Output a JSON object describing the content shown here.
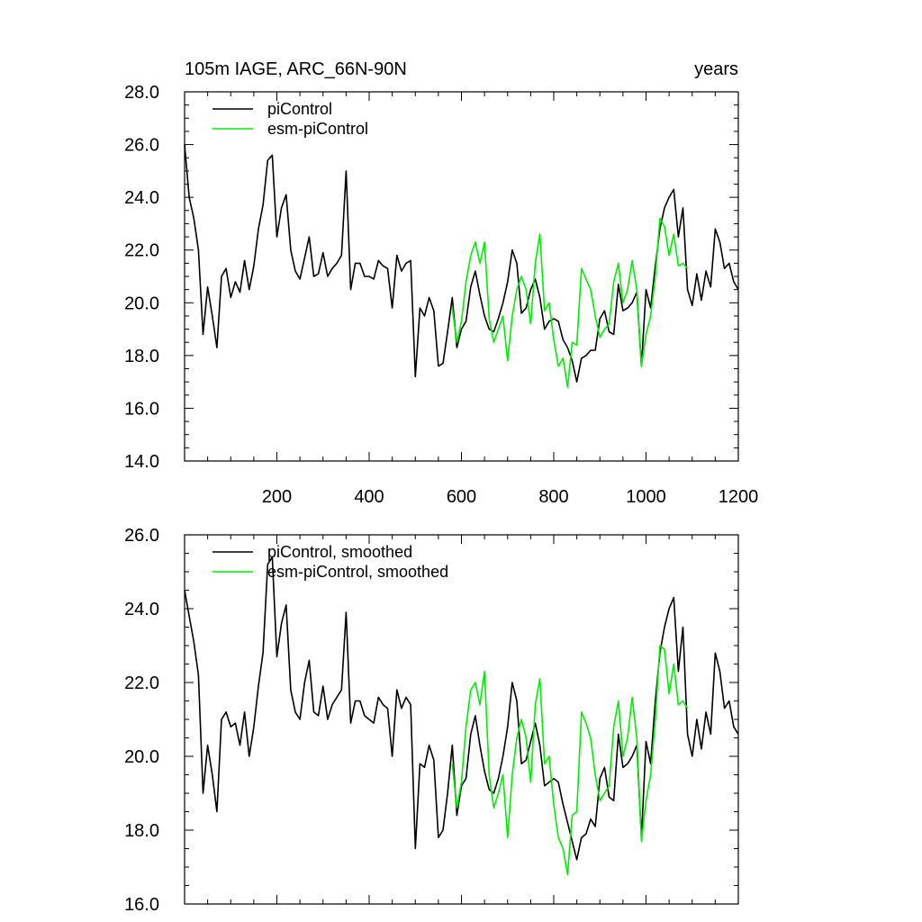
{
  "colors": {
    "piControl": "#000000",
    "esm_piControl": "#00ee00",
    "axis": "#000000"
  },
  "chart_data": [
    {
      "type": "line",
      "title_left": "105m IAGE, ARC_66N-90N",
      "title_right": "years",
      "xlim": [
        0,
        1200
      ],
      "ylim": [
        14,
        28
      ],
      "xticks": [
        200,
        400,
        600,
        800,
        1000,
        1200
      ],
      "xtick_labels": [
        "200",
        "400",
        "600",
        "800",
        "1000",
        "1200"
      ],
      "yticks": [
        14,
        16,
        18,
        20,
        22,
        24,
        26,
        28
      ],
      "ytick_labels": [
        "14.0",
        "16.0",
        "18.0",
        "20.0",
        "22.0",
        "24.0",
        "26.0",
        "28.0"
      ],
      "legend": [
        "piControl",
        "esm-piControl"
      ],
      "series": [
        {
          "name": "piControl",
          "x": [
            0,
            10,
            20,
            30,
            40,
            50,
            60,
            70,
            80,
            90,
            100,
            110,
            120,
            130,
            140,
            150,
            160,
            170,
            180,
            190,
            200,
            210,
            220,
            230,
            240,
            250,
            260,
            270,
            280,
            290,
            300,
            310,
            320,
            330,
            340,
            350,
            360,
            370,
            380,
            390,
            400,
            410,
            420,
            430,
            440,
            450,
            460,
            470,
            480,
            490,
            500,
            510,
            520,
            530,
            540,
            550,
            560,
            570,
            580,
            590,
            600,
            610,
            620,
            630,
            640,
            650,
            660,
            670,
            680,
            690,
            700,
            710,
            720,
            730,
            740,
            750,
            760,
            770,
            780,
            790,
            800,
            810,
            820,
            830,
            840,
            850,
            860,
            870,
            880,
            890,
            900,
            910,
            920,
            930,
            940,
            950,
            960,
            970,
            980,
            990,
            1000,
            1010,
            1020,
            1030,
            1040,
            1050,
            1060,
            1070,
            1080,
            1090,
            1100,
            1110,
            1120,
            1130,
            1140,
            1150,
            1160,
            1170,
            1180,
            1190,
            1200
          ],
          "values": [
            26.0,
            24.0,
            23.2,
            22.0,
            18.8,
            20.6,
            19.5,
            18.3,
            21.0,
            21.3,
            20.2,
            20.8,
            20.4,
            21.6,
            20.5,
            21.4,
            22.8,
            23.7,
            25.4,
            25.6,
            22.5,
            23.6,
            24.1,
            22.0,
            21.2,
            20.9,
            21.7,
            22.5,
            21.0,
            21.1,
            21.9,
            21.0,
            21.3,
            21.5,
            21.8,
            25.0,
            20.5,
            21.5,
            21.5,
            21.0,
            21.0,
            20.9,
            21.6,
            21.4,
            21.3,
            19.8,
            21.8,
            21.2,
            21.5,
            21.6,
            17.2,
            19.8,
            19.5,
            20.2,
            19.7,
            17.6,
            17.7,
            18.9,
            20.2,
            18.3,
            19.0,
            19.3,
            20.6,
            21.2,
            20.3,
            19.5,
            19.0,
            18.9,
            19.4,
            20.0,
            20.8,
            22.0,
            21.5,
            19.6,
            19.8,
            20.5,
            20.9,
            20.2,
            19.0,
            19.3,
            19.4,
            19.3,
            18.6,
            18.3,
            17.8,
            17.0,
            17.9,
            18.0,
            18.2,
            18.2,
            19.4,
            19.7,
            18.9,
            18.8,
            20.7,
            19.7,
            19.8,
            20.0,
            20.4,
            17.6,
            20.5,
            19.8,
            21.4,
            22.8,
            23.6,
            24.0,
            24.3,
            22.5,
            23.6,
            20.5,
            19.9,
            21.1,
            20.1,
            21.2,
            20.6,
            22.8,
            22.3,
            21.3,
            21.5,
            20.8,
            20.5
          ]
        },
        {
          "name": "esm-piControl",
          "x": [
            580,
            590,
            600,
            610,
            620,
            630,
            640,
            650,
            660,
            670,
            680,
            690,
            700,
            710,
            720,
            730,
            740,
            750,
            760,
            770,
            780,
            790,
            800,
            810,
            820,
            830,
            840,
            850,
            860,
            870,
            880,
            890,
            900,
            910,
            920,
            930,
            940,
            950,
            960,
            970,
            980,
            990,
            1000,
            1010,
            1020,
            1030,
            1040,
            1050,
            1060,
            1070,
            1080,
            1090
          ],
          "values": [
            19.8,
            18.5,
            19.3,
            20.8,
            21.8,
            22.3,
            21.5,
            22.3,
            19.4,
            18.5,
            19.0,
            19.5,
            17.8,
            19.5,
            20.5,
            21.0,
            20.5,
            19.2,
            21.5,
            22.6,
            19.7,
            20.0,
            18.6,
            17.6,
            17.9,
            16.8,
            18.5,
            18.4,
            21.3,
            20.9,
            20.5,
            19.5,
            18.7,
            19.0,
            19.2,
            20.8,
            21.5,
            20.0,
            20.5,
            21.6,
            20.5,
            17.6,
            18.8,
            19.5,
            21.0,
            23.2,
            22.9,
            21.8,
            22.6,
            21.4,
            21.5,
            21.3
          ]
        }
      ]
    },
    {
      "type": "line",
      "xlim": [
        0,
        1200
      ],
      "ylim": [
        16,
        26
      ],
      "yticks": [
        16,
        18,
        20,
        22,
        24,
        26
      ],
      "ytick_labels": [
        "16.0",
        "18.0",
        "20.0",
        "22.0",
        "24.0",
        "26.0"
      ],
      "legend": [
        "piControl, smoothed",
        "esm-piControl, smoothed"
      ],
      "series": [
        {
          "name": "piControl, smoothed",
          "x": [
            0,
            10,
            20,
            30,
            40,
            50,
            60,
            70,
            80,
            90,
            100,
            110,
            120,
            130,
            140,
            150,
            160,
            170,
            180,
            190,
            200,
            210,
            220,
            230,
            240,
            250,
            260,
            270,
            280,
            290,
            300,
            310,
            320,
            330,
            340,
            350,
            360,
            370,
            380,
            390,
            400,
            410,
            420,
            430,
            440,
            450,
            460,
            470,
            480,
            490,
            500,
            510,
            520,
            530,
            540,
            550,
            560,
            570,
            580,
            590,
            600,
            610,
            620,
            630,
            640,
            650,
            660,
            670,
            680,
            690,
            700,
            710,
            720,
            730,
            740,
            750,
            760,
            770,
            780,
            790,
            800,
            810,
            820,
            830,
            840,
            850,
            860,
            870,
            880,
            890,
            900,
            910,
            920,
            930,
            940,
            950,
            960,
            970,
            980,
            990,
            1000,
            1010,
            1020,
            1030,
            1040,
            1050,
            1060,
            1070,
            1080,
            1090,
            1100,
            1110,
            1120,
            1130,
            1140,
            1150,
            1160,
            1170,
            1180,
            1190,
            1200
          ],
          "values": [
            24.5,
            23.8,
            23.1,
            22.2,
            19.0,
            20.3,
            19.5,
            18.5,
            21.0,
            21.2,
            20.8,
            20.9,
            20.3,
            21.2,
            20.0,
            20.8,
            21.9,
            22.8,
            25.2,
            25.4,
            22.7,
            23.6,
            24.1,
            21.8,
            21.2,
            21.0,
            22.0,
            22.6,
            21.2,
            21.1,
            21.9,
            21.0,
            21.4,
            21.6,
            21.8,
            23.9,
            20.9,
            21.5,
            21.5,
            21.1,
            21.0,
            20.9,
            21.6,
            21.4,
            21.3,
            20.0,
            21.8,
            21.3,
            21.6,
            21.4,
            17.5,
            19.8,
            19.7,
            20.3,
            19.9,
            17.8,
            18.0,
            19.0,
            20.3,
            18.4,
            19.2,
            19.4,
            20.6,
            21.1,
            20.3,
            19.6,
            19.1,
            19.0,
            19.4,
            20.0,
            20.8,
            22.0,
            21.5,
            19.8,
            19.9,
            20.4,
            20.9,
            20.3,
            19.2,
            19.3,
            19.4,
            19.3,
            18.7,
            18.2,
            17.7,
            17.2,
            17.8,
            17.9,
            18.3,
            18.1,
            19.4,
            19.7,
            18.9,
            18.8,
            20.6,
            19.7,
            19.8,
            20.0,
            20.3,
            17.8,
            20.4,
            19.8,
            21.5,
            22.8,
            23.5,
            24.0,
            24.3,
            22.3,
            23.5,
            20.6,
            20.0,
            21.0,
            20.2,
            21.2,
            20.6,
            22.8,
            22.3,
            21.3,
            21.5,
            20.8,
            20.6
          ]
        },
        {
          "name": "esm-piControl, smoothed",
          "x": [
            580,
            590,
            600,
            610,
            620,
            630,
            640,
            650,
            660,
            670,
            680,
            690,
            700,
            710,
            720,
            730,
            740,
            750,
            760,
            770,
            780,
            790,
            800,
            810,
            820,
            830,
            840,
            850,
            860,
            870,
            880,
            890,
            900,
            910,
            920,
            930,
            940,
            950,
            960,
            970,
            980,
            990,
            1000,
            1010,
            1020,
            1030,
            1040,
            1050,
            1060,
            1070,
            1080,
            1090
          ],
          "values": [
            19.8,
            18.6,
            19.3,
            20.8,
            21.8,
            22.0,
            21.4,
            22.3,
            19.5,
            18.6,
            19.0,
            19.5,
            17.8,
            19.5,
            20.5,
            21.0,
            20.5,
            19.3,
            21.4,
            22.1,
            19.8,
            20.0,
            18.7,
            17.8,
            17.5,
            16.8,
            18.4,
            18.5,
            21.2,
            20.9,
            20.5,
            19.5,
            18.8,
            19.0,
            19.2,
            20.8,
            21.5,
            20.0,
            20.5,
            21.6,
            20.5,
            17.7,
            18.8,
            19.5,
            21.0,
            23.0,
            22.9,
            21.7,
            22.5,
            21.4,
            21.5,
            21.3
          ]
        }
      ]
    }
  ]
}
